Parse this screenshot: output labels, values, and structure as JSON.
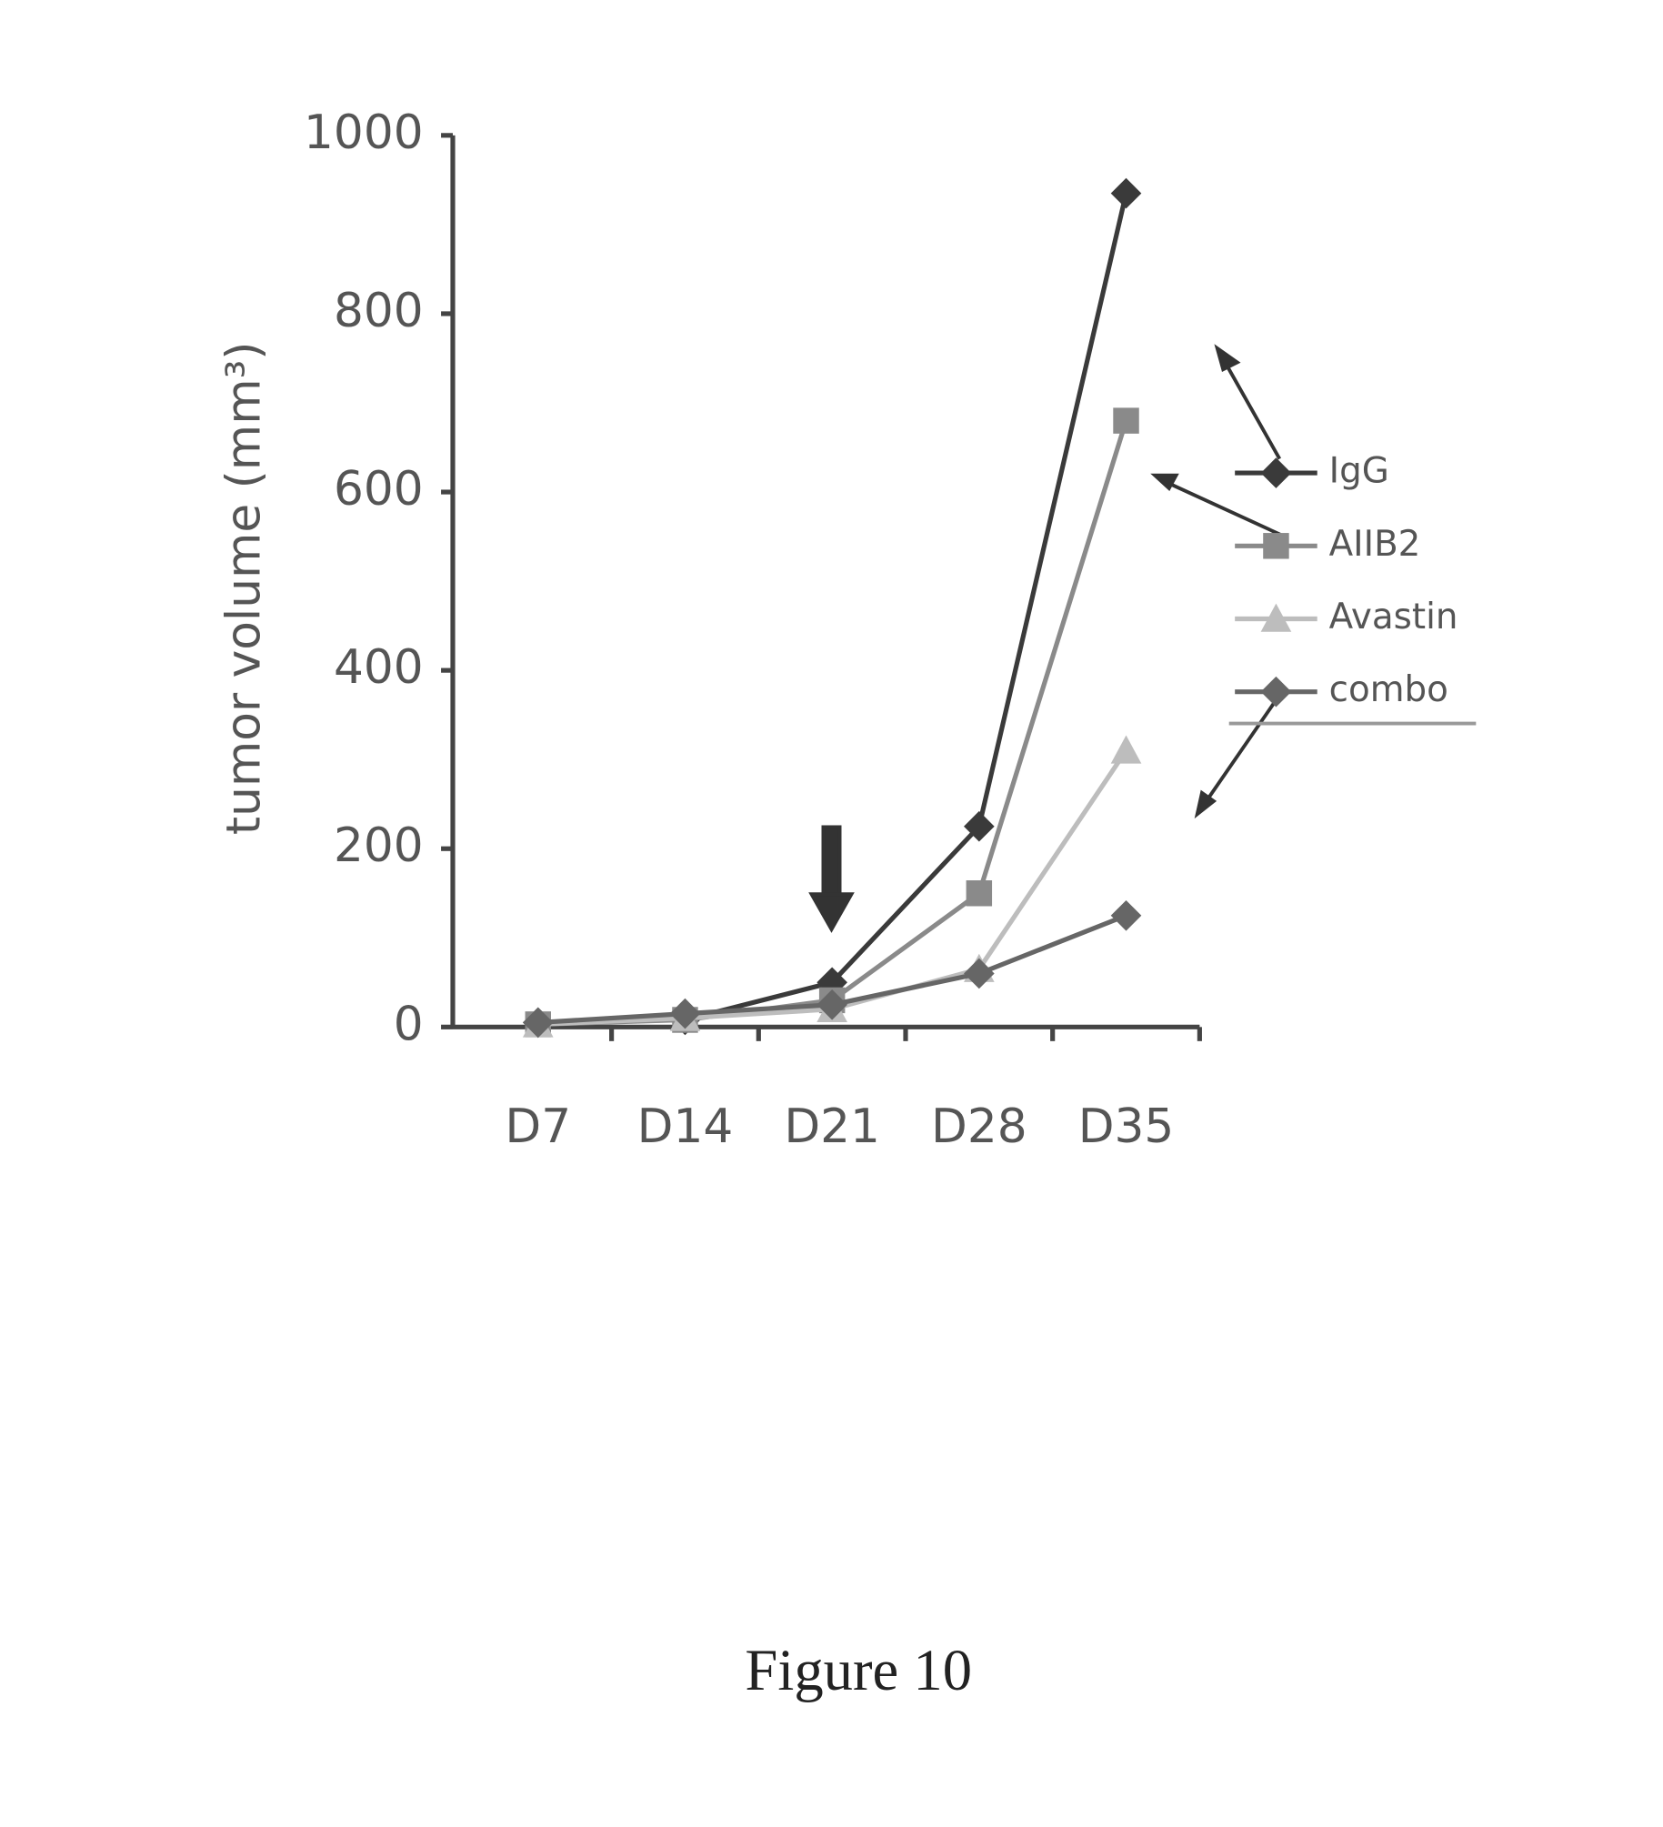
{
  "chart_data": {
    "type": "line",
    "y_label": "tumor volume (mm³)",
    "categories": [
      "D7",
      "D14",
      "D21",
      "D28",
      "D35"
    ],
    "series": [
      {
        "name": "IgG",
        "color": "#3a3a3a",
        "marker": "diamond",
        "values": [
          5,
          8,
          50,
          225,
          935
        ]
      },
      {
        "name": "AIIB2",
        "color": "#8a8a8a",
        "marker": "square",
        "values": [
          3,
          8,
          30,
          150,
          680
        ]
      },
      {
        "name": "Avastin",
        "color": "#bdbdbd",
        "marker": "triangle",
        "values": [
          3,
          10,
          20,
          65,
          310
        ]
      },
      {
        "name": "combo",
        "color": "#666666",
        "marker": "diamond",
        "values": [
          5,
          15,
          25,
          60,
          125
        ]
      }
    ],
    "ylim": [
      0,
      1000
    ],
    "yticks": [
      0,
      200,
      400,
      600,
      800,
      1000
    ]
  },
  "caption": "Figure 10"
}
